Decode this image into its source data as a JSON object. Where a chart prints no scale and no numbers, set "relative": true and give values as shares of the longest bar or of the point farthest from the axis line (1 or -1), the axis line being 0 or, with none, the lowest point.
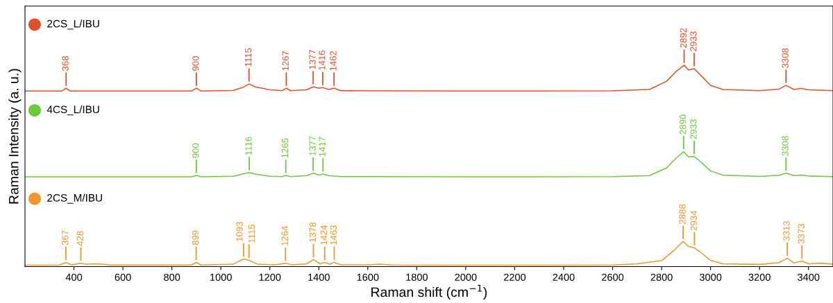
{
  "chart_data": {
    "type": "line",
    "relative": true,
    "xlabel": "Raman shift (cm$^{−1}$)",
    "ylabel": "Raman Intensity (a. u.)",
    "xlim": [
      200,
      3500
    ],
    "xticks": [
      400,
      600,
      800,
      1000,
      1200,
      1400,
      1600,
      1800,
      2000,
      2200,
      2400,
      2600,
      2800,
      3000,
      3200,
      3400
    ],
    "tick_labels": "x",
    "grid": false,
    "legend": "left",
    "series": [
      {
        "name": "2CS_L/IBU",
        "color": "#e0512b",
        "x": [
          200,
          350,
          368,
          385,
          880,
          900,
          920,
          1050,
          1090,
          1115,
          1140,
          1200,
          1250,
          1267,
          1285,
          1350,
          1377,
          1400,
          1416,
          1440,
          1462,
          1490,
          1600,
          2000,
          2600,
          2750,
          2820,
          2860,
          2892,
          2910,
          2933,
          2960,
          3000,
          3050,
          3200,
          3280,
          3308,
          3340,
          3370,
          3400,
          3500
        ],
        "values": [
          0.872,
          0.872,
          0.886,
          0.872,
          0.872,
          0.886,
          0.872,
          0.875,
          0.89,
          0.907,
          0.893,
          0.878,
          0.874,
          0.886,
          0.874,
          0.878,
          0.893,
          0.886,
          0.889,
          0.88,
          0.886,
          0.874,
          0.873,
          0.872,
          0.873,
          0.88,
          0.92,
          0.97,
          1.0,
          0.976,
          0.983,
          0.95,
          0.9,
          0.88,
          0.874,
          0.882,
          0.9,
          0.88,
          0.885,
          0.878,
          0.874
        ]
      },
      {
        "name": "4CS_L/IBU",
        "color": "#6cc83c",
        "x": [
          200,
          880,
          900,
          920,
          1050,
          1090,
          1116,
          1140,
          1200,
          1250,
          1265,
          1285,
          1350,
          1377,
          1400,
          1417,
          1440,
          1490,
          1600,
          2000,
          2600,
          2750,
          2820,
          2860,
          2890,
          2910,
          2933,
          2960,
          3000,
          3050,
          3200,
          3280,
          3308,
          3340,
          3370,
          3400,
          3500
        ],
        "values": [
          0.446,
          0.446,
          0.453,
          0.446,
          0.449,
          0.46,
          0.467,
          0.46,
          0.449,
          0.447,
          0.453,
          0.447,
          0.452,
          0.464,
          0.455,
          0.46,
          0.452,
          0.447,
          0.447,
          0.446,
          0.447,
          0.452,
          0.49,
          0.54,
          0.571,
          0.545,
          0.547,
          0.52,
          0.475,
          0.455,
          0.448,
          0.454,
          0.464,
          0.452,
          0.455,
          0.45,
          0.447
        ]
      },
      {
        "name": "2CS_M/IBU",
        "color": "#f0962a",
        "x": [
          200,
          340,
          367,
          390,
          428,
          450,
          500,
          550,
          880,
          899,
          920,
          1050,
          1093,
          1115,
          1150,
          1220,
          1264,
          1290,
          1350,
          1378,
          1405,
          1424,
          1445,
          1463,
          1490,
          1600,
          1650,
          1700,
          2000,
          2600,
          2700,
          2800,
          2850,
          2888,
          2910,
          2934,
          2960,
          3000,
          3050,
          3200,
          3280,
          3313,
          3340,
          3373,
          3400,
          3450,
          3500
        ],
        "values": [
          0.007,
          0.008,
          0.021,
          0.009,
          0.017,
          0.012,
          0.014,
          0.008,
          0.008,
          0.021,
          0.008,
          0.012,
          0.038,
          0.031,
          0.012,
          0.009,
          0.017,
          0.009,
          0.014,
          0.035,
          0.014,
          0.021,
          0.012,
          0.021,
          0.009,
          0.009,
          0.012,
          0.008,
          0.007,
          0.008,
          0.014,
          0.03,
          0.08,
          0.125,
          0.1,
          0.093,
          0.07,
          0.031,
          0.014,
          0.011,
          0.02,
          0.042,
          0.018,
          0.028,
          0.014,
          0.017,
          0.012
        ]
      }
    ],
    "annotations": [
      {
        "text": "368",
        "x": 368,
        "y": 0.886
      },
      {
        "text": "900",
        "x": 900,
        "y": 0.886
      },
      {
        "text": "1115",
        "x": 1115,
        "y": 0.907
      },
      {
        "text": "1267",
        "x": 1267,
        "y": 0.886
      },
      {
        "text": "1377",
        "x": 1377,
        "y": 0.893
      },
      {
        "text": "1416",
        "x": 1416,
        "y": 0.889
      },
      {
        "text": "1462",
        "x": 1462,
        "y": 0.886
      },
      {
        "text": "2892",
        "x": 2892,
        "y": 1.0
      },
      {
        "text": "2933",
        "x": 2933,
        "y": 0.983
      },
      {
        "text": "3308",
        "x": 3308,
        "y": 0.9
      },
      {
        "text": "900",
        "x": 900,
        "y": 0.453
      },
      {
        "text": "1116",
        "x": 1116,
        "y": 0.467
      },
      {
        "text": "1265",
        "x": 1265,
        "y": 0.453
      },
      {
        "text": "1377",
        "x": 1377,
        "y": 0.464
      },
      {
        "text": "1417",
        "x": 1417,
        "y": 0.46
      },
      {
        "text": "2890",
        "x": 2890,
        "y": 0.571
      },
      {
        "text": "2933",
        "x": 2933,
        "y": 0.547
      },
      {
        "text": "3308",
        "x": 3308,
        "y": 0.464
      },
      {
        "text": "367",
        "x": 367,
        "y": 0.021
      },
      {
        "text": "428",
        "x": 428,
        "y": 0.017
      },
      {
        "text": "899",
        "x": 899,
        "y": 0.021
      },
      {
        "text": "1093",
        "x": 1093,
        "y": 0.038
      },
      {
        "text": "1115",
        "x": 1115,
        "y": 0.031
      },
      {
        "text": "1264",
        "x": 1264,
        "y": 0.017
      },
      {
        "text": "1378",
        "x": 1378,
        "y": 0.035
      },
      {
        "text": "1424",
        "x": 1424,
        "y": 0.021
      },
      {
        "text": "1463",
        "x": 1463,
        "y": 0.021
      },
      {
        "text": "2888",
        "x": 2888,
        "y": 0.125
      },
      {
        "text": "2934",
        "x": 2934,
        "y": 0.093
      },
      {
        "text": "3313",
        "x": 3313,
        "y": 0.042
      },
      {
        "text": "3373",
        "x": 3373,
        "y": 0.028
      }
    ]
  }
}
